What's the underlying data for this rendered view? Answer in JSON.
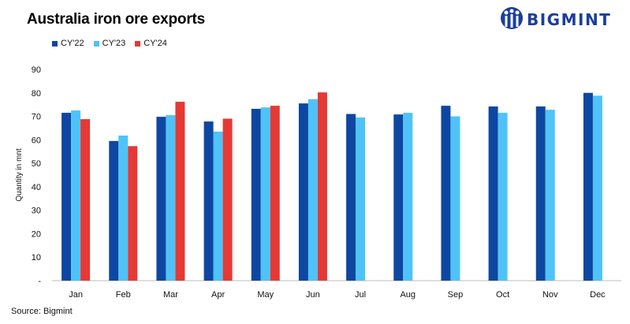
{
  "title": "Australia iron ore exports",
  "brand": {
    "name": "BIGMINT",
    "color": "#1b3f9a"
  },
  "source": "Source: Bigmint",
  "chart_data": {
    "type": "bar",
    "title": "Australia iron ore exports",
    "xlabel": "",
    "ylabel": "Quantity in mnt",
    "ylim": [
      0,
      90
    ],
    "yticks": [
      0,
      10,
      20,
      30,
      40,
      50,
      60,
      70,
      80,
      90
    ],
    "ytick_labels": [
      "-",
      "10",
      "20",
      "30",
      "40",
      "50",
      "60",
      "70",
      "80",
      "90"
    ],
    "grid": false,
    "legend_position": "top-left",
    "categories": [
      "Jan",
      "Feb",
      "Mar",
      "Apr",
      "May",
      "Jun",
      "Jul",
      "Aug",
      "Sep",
      "Oct",
      "Nov",
      "Dec"
    ],
    "series": [
      {
        "name": "CY'22",
        "color": "#0d47a1",
        "values": [
          71.5,
          59.5,
          69.8,
          67.8,
          73.2,
          75.5,
          71.0,
          70.8,
          74.5,
          74.2,
          74.2,
          80.0
        ]
      },
      {
        "name": "CY'23",
        "color": "#4fc3f7",
        "values": [
          72.5,
          61.8,
          70.5,
          63.5,
          73.8,
          77.3,
          69.5,
          71.5,
          70.0,
          71.5,
          72.8,
          78.8
        ]
      },
      {
        "name": "CY'24",
        "color": "#e53935",
        "values": [
          68.8,
          57.3,
          76.2,
          69.0,
          74.5,
          80.2,
          null,
          null,
          null,
          null,
          null,
          null
        ]
      }
    ]
  }
}
